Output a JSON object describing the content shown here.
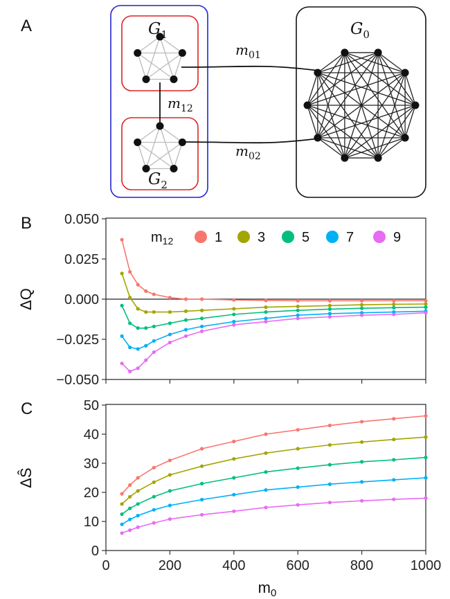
{
  "panels": {
    "a": "A",
    "b": "B",
    "c": "C"
  },
  "diagram": {
    "g1": {
      "name": "G",
      "sub": "1"
    },
    "g2": {
      "name": "G",
      "sub": "2"
    },
    "g0": {
      "name": "G",
      "sub": "0"
    },
    "m01": {
      "name": "m",
      "sub": "01"
    },
    "m02": {
      "name": "m",
      "sub": "02"
    },
    "m12": {
      "name": "m",
      "sub": "12"
    },
    "colors": {
      "outer_box": "#2222cc",
      "group_box": "#dd2222",
      "big_box": "#111111",
      "light_edge": "#bbbbbb",
      "node": "#111111"
    }
  },
  "chart_data": [
    {
      "type": "line",
      "panel": "B",
      "ylabel": "ΔQ",
      "xlabel": "",
      "ylim": [
        -0.05,
        0.05
      ],
      "xlim": [
        0,
        1000
      ],
      "yticks": [
        0.05,
        0.025,
        0.0,
        -0.025,
        -0.05
      ],
      "ytick_labels": [
        "0.050",
        "0.025",
        "0.000",
        "−0.025",
        "−0.050"
      ],
      "reference_line": 0.0,
      "legend": {
        "title": "m",
        "title_sub": "12",
        "placement": "top"
      },
      "series": [
        {
          "name": "1",
          "color": "#F8766D",
          "x": [
            50,
            75,
            100,
            125,
            150,
            200,
            250,
            300,
            400,
            500,
            600,
            700,
            800,
            900,
            1000
          ],
          "values": [
            0.037,
            0.017,
            0.009,
            0.005,
            0.003,
            0.001,
            0.0,
            0.0,
            -0.0005,
            -0.0008,
            -0.001,
            -0.001,
            -0.001,
            -0.001,
            -0.001
          ]
        },
        {
          "name": "3",
          "color": "#A3A500",
          "x": [
            50,
            75,
            100,
            125,
            150,
            200,
            250,
            300,
            400,
            500,
            600,
            700,
            800,
            900,
            1000
          ],
          "values": [
            0.016,
            0.001,
            -0.006,
            -0.008,
            -0.008,
            -0.008,
            -0.0075,
            -0.007,
            -0.006,
            -0.005,
            -0.0045,
            -0.004,
            -0.0035,
            -0.0032,
            -0.003
          ]
        },
        {
          "name": "5",
          "color": "#00BF7D",
          "x": [
            50,
            75,
            100,
            125,
            150,
            200,
            250,
            300,
            400,
            500,
            600,
            700,
            800,
            900,
            1000
          ],
          "values": [
            -0.004,
            -0.015,
            -0.018,
            -0.018,
            -0.017,
            -0.015,
            -0.013,
            -0.012,
            -0.0095,
            -0.008,
            -0.007,
            -0.0062,
            -0.0057,
            -0.0053,
            -0.005
          ]
        },
        {
          "name": "7",
          "color": "#00B0F6",
          "x": [
            50,
            75,
            100,
            125,
            150,
            200,
            250,
            300,
            400,
            500,
            600,
            700,
            800,
            900,
            1000
          ],
          "values": [
            -0.023,
            -0.03,
            -0.031,
            -0.029,
            -0.026,
            -0.022,
            -0.019,
            -0.017,
            -0.014,
            -0.012,
            -0.01,
            -0.009,
            -0.0085,
            -0.008,
            -0.0075
          ]
        },
        {
          "name": "9",
          "color": "#E76BF3",
          "x": [
            50,
            75,
            100,
            125,
            150,
            200,
            250,
            300,
            400,
            500,
            600,
            700,
            800,
            900,
            1000
          ],
          "values": [
            -0.04,
            -0.045,
            -0.043,
            -0.038,
            -0.033,
            -0.027,
            -0.023,
            -0.02,
            -0.016,
            -0.014,
            -0.012,
            -0.011,
            -0.01,
            -0.0095,
            -0.0085
          ]
        }
      ]
    },
    {
      "type": "line",
      "panel": "C",
      "ylabel": "ΔŜ",
      "xlabel": "m",
      "xlabel_sub": "0",
      "ylim": [
        0,
        50
      ],
      "xlim": [
        0,
        1000
      ],
      "yticks": [
        0,
        10,
        20,
        30,
        40,
        50
      ],
      "xticks": [
        0,
        200,
        400,
        600,
        800,
        1000
      ],
      "series": [
        {
          "name": "1",
          "color": "#F8766D",
          "x": [
            50,
            75,
            100,
            150,
            200,
            300,
            400,
            500,
            600,
            700,
            800,
            900,
            1000
          ],
          "values": [
            19.5,
            22.5,
            25.0,
            28.5,
            31.0,
            35.0,
            37.5,
            40.0,
            41.5,
            43.0,
            44.3,
            45.3,
            46.3
          ]
        },
        {
          "name": "3",
          "color": "#A3A500",
          "x": [
            50,
            75,
            100,
            150,
            200,
            300,
            400,
            500,
            600,
            700,
            800,
            900,
            1000
          ],
          "values": [
            16.0,
            18.5,
            20.5,
            23.5,
            26.0,
            29.0,
            31.5,
            33.5,
            35.0,
            36.3,
            37.3,
            38.2,
            39.0
          ]
        },
        {
          "name": "5",
          "color": "#00BF7D",
          "x": [
            50,
            75,
            100,
            150,
            200,
            300,
            400,
            500,
            600,
            700,
            800,
            900,
            1000
          ],
          "values": [
            12.5,
            14.5,
            16.0,
            18.5,
            20.5,
            23.0,
            25.0,
            27.0,
            28.3,
            29.5,
            30.5,
            31.2,
            32.0
          ]
        },
        {
          "name": "7",
          "color": "#00B0F6",
          "x": [
            50,
            75,
            100,
            150,
            200,
            300,
            400,
            500,
            600,
            700,
            800,
            900,
            1000
          ],
          "values": [
            9.0,
            10.7,
            12.0,
            14.0,
            15.5,
            17.5,
            19.2,
            20.8,
            21.8,
            22.8,
            23.6,
            24.3,
            25.0
          ]
        },
        {
          "name": "9",
          "color": "#E76BF3",
          "x": [
            50,
            75,
            100,
            150,
            200,
            300,
            400,
            500,
            600,
            700,
            800,
            900,
            1000
          ],
          "values": [
            6.0,
            7.0,
            8.0,
            9.5,
            10.8,
            12.3,
            13.5,
            14.8,
            15.7,
            16.5,
            17.1,
            17.6,
            18.0
          ]
        }
      ]
    }
  ]
}
